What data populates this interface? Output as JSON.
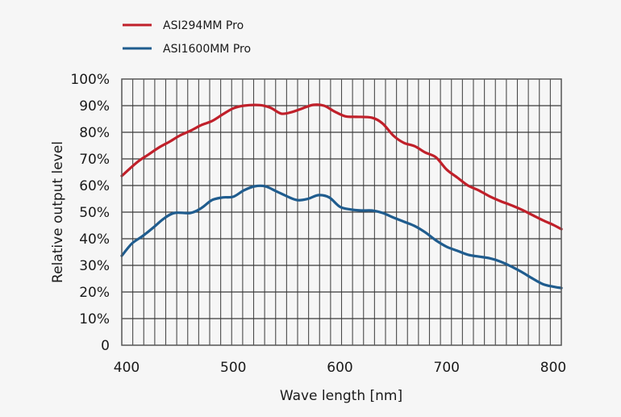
{
  "chart_data": {
    "type": "line",
    "title": "",
    "xlabel": "Wave length [nm]",
    "ylabel": "Relative output level",
    "xlim": [
      395.5,
      807.6
    ],
    "ylim": [
      0,
      100
    ],
    "x_ticks": [
      400,
      500,
      600,
      700,
      800
    ],
    "x_tick_labels": [
      "400",
      "500",
      "600",
      "700",
      "800"
    ],
    "y_ticks": [
      0,
      10,
      20,
      30,
      40,
      50,
      60,
      70,
      80,
      90,
      100
    ],
    "y_tick_labels": [
      "0",
      "10%",
      "20%",
      "30%",
      "40%",
      "50%",
      "60%",
      "70%",
      "80%",
      "90%",
      "100%"
    ],
    "grid": {
      "x_step_nm": 10,
      "y_step_percent": 10,
      "on": true
    },
    "legend_position": "top-left",
    "series": [
      {
        "name": "ASI294MM Pro",
        "color": "#c0202a",
        "x": [
          395.5,
          410,
          420,
          430,
          440,
          450,
          460,
          470,
          480,
          490,
          500,
          510,
          525,
          535,
          545,
          555,
          565,
          575,
          585,
          595,
          605,
          615,
          630,
          640,
          650,
          660,
          670,
          680,
          690,
          700,
          710,
          720,
          730,
          740,
          750,
          760,
          770,
          780,
          790,
          800,
          807.6
        ],
        "y": [
          63.6,
          68.8,
          71.5,
          74.2,
          76.4,
          78.8,
          80.6,
          82.7,
          84.2,
          86.7,
          89.0,
          90.0,
          90.2,
          89.2,
          87.0,
          87.6,
          89.0,
          90.3,
          90.0,
          87.8,
          86.0,
          85.8,
          85.5,
          83.3,
          78.8,
          76.0,
          74.8,
          72.4,
          70.6,
          66.0,
          63.0,
          60.0,
          58.2,
          56.0,
          54.2,
          52.7,
          51.0,
          49.0,
          47.0,
          45.2,
          43.6
        ]
      },
      {
        "name": "ASI1600MM Pro",
        "color": "#1f5c8e",
        "x": [
          395.5,
          405,
          415,
          425,
          435,
          445,
          460,
          470,
          480,
          490,
          500,
          510,
          520,
          530,
          540,
          550,
          560,
          570,
          580,
          590,
          600,
          610,
          620,
          630,
          640,
          650,
          660,
          670,
          680,
          690,
          700,
          710,
          720,
          730,
          740,
          750,
          760,
          770,
          780,
          790,
          800,
          807.6
        ],
        "y": [
          33.6,
          38.2,
          41.0,
          44.2,
          47.6,
          49.7,
          49.7,
          51.5,
          54.5,
          55.5,
          55.8,
          58.2,
          59.7,
          59.7,
          57.9,
          56.0,
          54.5,
          55.0,
          56.4,
          55.5,
          52.0,
          51.0,
          50.6,
          50.6,
          49.7,
          48.0,
          46.4,
          44.8,
          42.4,
          39.4,
          37.0,
          35.5,
          34.0,
          33.3,
          32.7,
          31.5,
          29.7,
          27.6,
          25.2,
          23.0,
          22.0,
          21.5
        ]
      }
    ]
  }
}
